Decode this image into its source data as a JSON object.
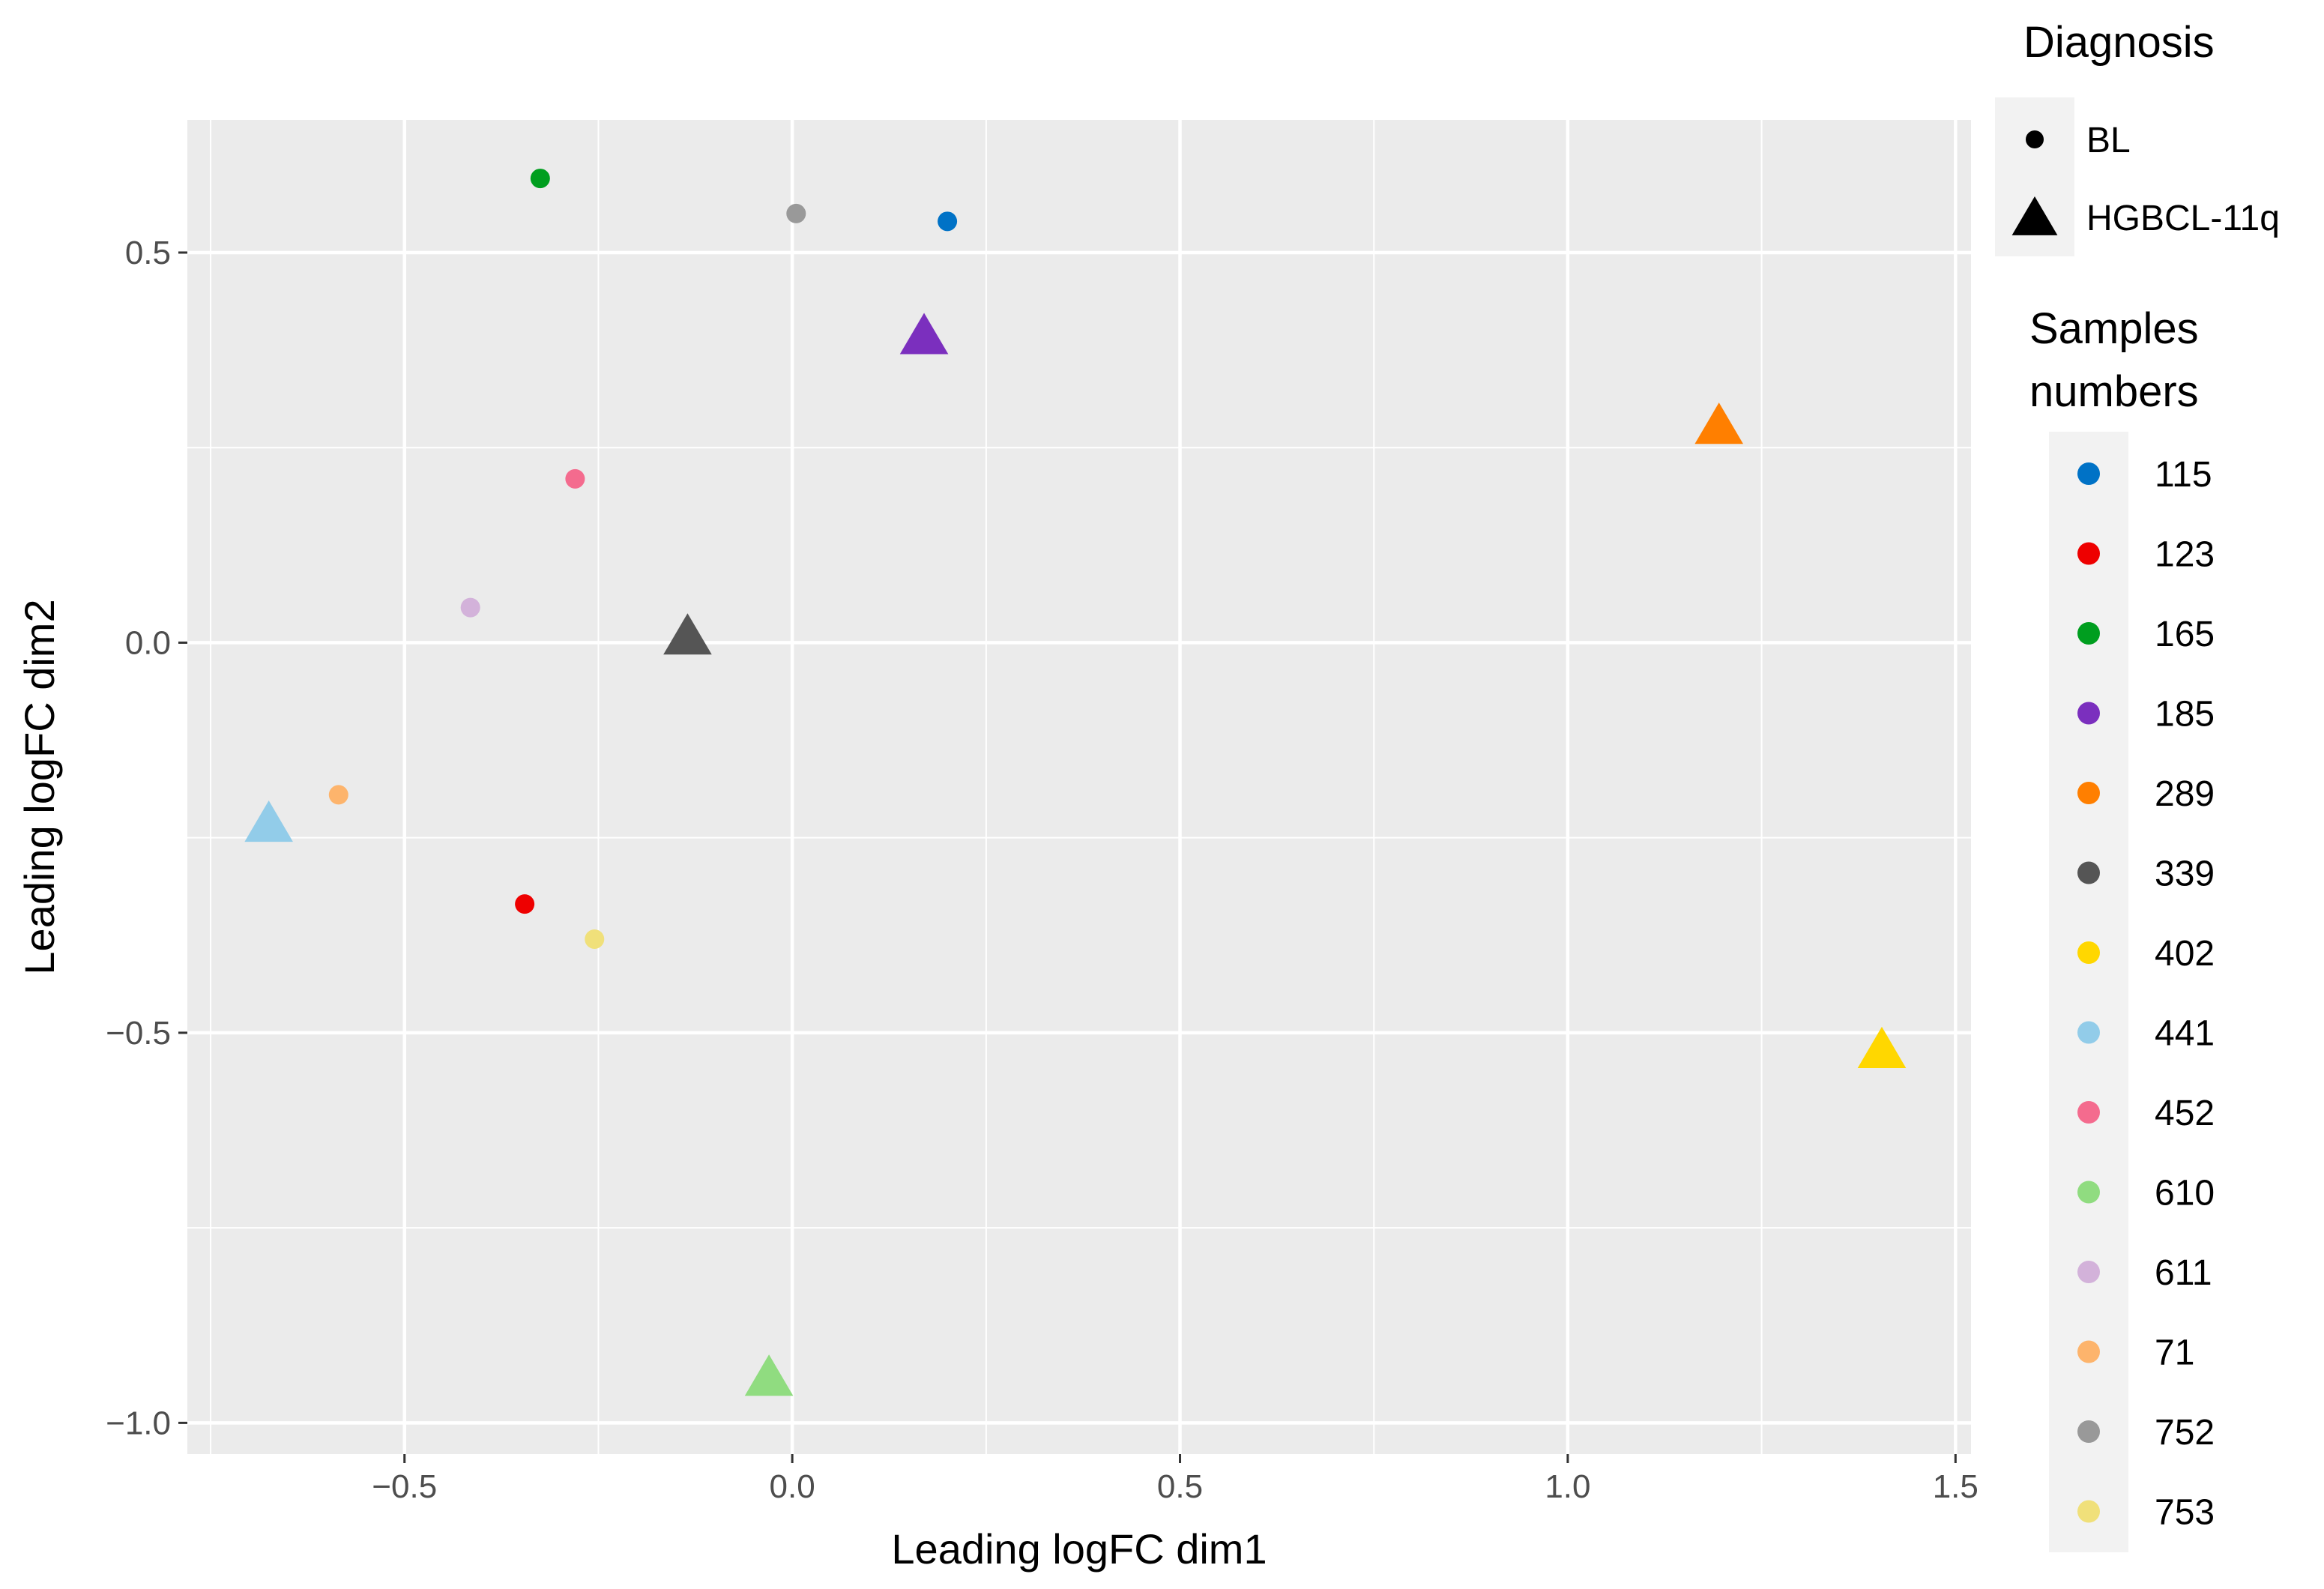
{
  "chart_data": {
    "type": "scatter",
    "xlabel": "Leading logFC dim1",
    "ylabel": "Leading logFC dim2",
    "xlim": [
      -0.78,
      1.52
    ],
    "ylim": [
      -1.04,
      0.67
    ],
    "x_ticks": [
      -0.5,
      0.0,
      0.5,
      1.0,
      1.5
    ],
    "x_tick_labels": [
      "−0.5",
      "0.0",
      "0.5",
      "1.0",
      "1.5"
    ],
    "y_ticks": [
      -1.0,
      -0.5,
      0.0,
      0.5
    ],
    "y_tick_labels": [
      "−1.0",
      "−0.5",
      "0.0",
      "0.5"
    ],
    "grid": true,
    "legend_position": "right",
    "shape_legend": {
      "title": "Diagnosis",
      "entries": [
        {
          "label": "BL",
          "shape": "circle"
        },
        {
          "label": "HGBCL-11q",
          "shape": "triangle"
        }
      ]
    },
    "color_legend": {
      "title_lines": [
        "Samples",
        "numbers"
      ],
      "entries": [
        {
          "label": "115",
          "color": "#0072C6"
        },
        {
          "label": "123",
          "color": "#EE0000"
        },
        {
          "label": "165",
          "color": "#009E1F"
        },
        {
          "label": "185",
          "color": "#7B2FBE"
        },
        {
          "label": "289",
          "color": "#FF7F00"
        },
        {
          "label": "339",
          "color": "#555555"
        },
        {
          "label": "402",
          "color": "#FFD700"
        },
        {
          "label": "441",
          "color": "#92CCE9"
        },
        {
          "label": "452",
          "color": "#F46B8E"
        },
        {
          "label": "610",
          "color": "#90DC80"
        },
        {
          "label": "611",
          "color": "#D3B2DA"
        },
        {
          "label": "71",
          "color": "#FDB46C"
        },
        {
          "label": "752",
          "color": "#999999"
        },
        {
          "label": "753",
          "color": "#F0E07A"
        }
      ]
    },
    "points": [
      {
        "sample": "115",
        "diagnosis": "BL",
        "x": 0.2,
        "y": 0.54
      },
      {
        "sample": "123",
        "diagnosis": "BL",
        "x": -0.345,
        "y": -0.335
      },
      {
        "sample": "165",
        "diagnosis": "BL",
        "x": -0.325,
        "y": 0.595
      },
      {
        "sample": "185",
        "diagnosis": "HGBCL-11q",
        "x": 0.17,
        "y": 0.39
      },
      {
        "sample": "289",
        "diagnosis": "HGBCL-11q",
        "x": 1.195,
        "y": 0.275
      },
      {
        "sample": "339",
        "diagnosis": "HGBCL-11q",
        "x": -0.135,
        "y": 0.005
      },
      {
        "sample": "402",
        "diagnosis": "HGBCL-11q",
        "x": 1.405,
        "y": -0.525
      },
      {
        "sample": "441",
        "diagnosis": "HGBCL-11q",
        "x": -0.675,
        "y": -0.235
      },
      {
        "sample": "452",
        "diagnosis": "BL",
        "x": -0.28,
        "y": 0.21
      },
      {
        "sample": "610",
        "diagnosis": "HGBCL-11q",
        "x": -0.03,
        "y": -0.945
      },
      {
        "sample": "611",
        "diagnosis": "BL",
        "x": -0.415,
        "y": 0.045
      },
      {
        "sample": "71",
        "diagnosis": "BL",
        "x": -0.585,
        "y": -0.195
      },
      {
        "sample": "752",
        "diagnosis": "BL",
        "x": 0.005,
        "y": 0.55
      },
      {
        "sample": "753",
        "diagnosis": "BL",
        "x": -0.255,
        "y": -0.38
      }
    ]
  }
}
